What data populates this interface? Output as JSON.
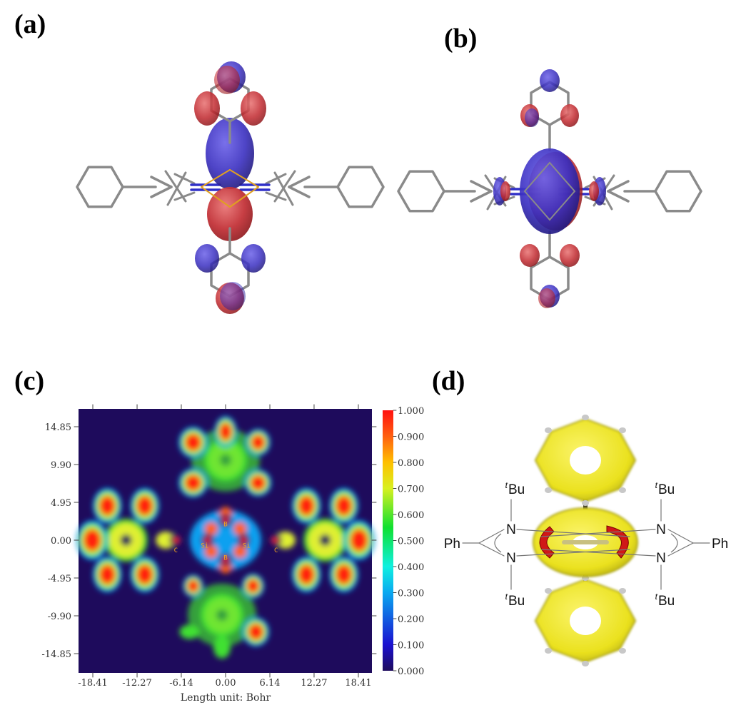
{
  "panels": {
    "a": {
      "label": "(a)"
    },
    "b": {
      "label": "(b)"
    },
    "c": {
      "label": "(c)"
    },
    "d": {
      "label": "(d)"
    }
  },
  "colors": {
    "lobe_positive": "#c0282e",
    "lobe_negative": "#3a2fc0",
    "bond": "#8a8a8a",
    "elf_background": "#1e0b5c",
    "acid_isosurface": "#f2ea2a",
    "current_arrow": "#d01818"
  },
  "chart_data": {
    "type": "heatmap",
    "xlabel": "Length unit: Bohr",
    "ylabel": "",
    "x_ticks": [
      "-18.41",
      "-12.27",
      "-6.14",
      "0.00",
      "6.14",
      "12.27",
      "18.41"
    ],
    "y_ticks": [
      "14.85",
      "9.90",
      "4.95",
      "0.00",
      "-4.95",
      "-9.90",
      "-14.85"
    ],
    "xlim": [
      -20.5,
      22.5
    ],
    "ylim": [
      -19.5,
      19.5
    ],
    "colorbar": {
      "ticks": [
        "1.000",
        "0.900",
        "0.800",
        "0.700",
        "0.600",
        "0.500",
        "0.400",
        "0.300",
        "0.200",
        "0.100",
        "0.000"
      ],
      "range": [
        0,
        1
      ],
      "colormap": "rainbow"
    },
    "atom_labels": [
      {
        "text": "B",
        "x": 0.0,
        "y": 2.2
      },
      {
        "text": "B",
        "x": 0.0,
        "y": -2.2
      },
      {
        "text": "Si",
        "x": -2.5,
        "y": -0.6
      },
      {
        "text": "Si",
        "x": 2.5,
        "y": -0.6
      },
      {
        "text": "C",
        "x": -6.9,
        "y": -1.2
      },
      {
        "text": "C",
        "x": 7.0,
        "y": -1.2
      }
    ]
  },
  "panel_d": {
    "tbu_prefix": "t",
    "tbu_text": "Bu",
    "n_label": "N",
    "ph_label": "Ph"
  }
}
